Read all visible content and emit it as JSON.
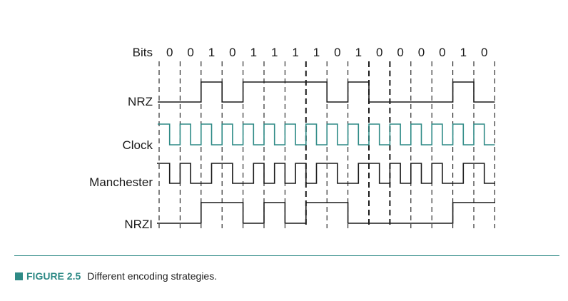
{
  "figure": {
    "bits_label": "Bits",
    "bits": [
      0,
      0,
      1,
      0,
      1,
      1,
      1,
      1,
      0,
      1,
      0,
      0,
      0,
      0,
      1,
      0
    ],
    "signals": [
      {
        "key": "nrz",
        "label": "NRZ"
      },
      {
        "key": "clock",
        "label": "Clock"
      },
      {
        "key": "manchester",
        "label": "Manchester"
      },
      {
        "key": "nrzi",
        "label": "NRZI"
      }
    ],
    "colors": {
      "signal": "#1a1a1a",
      "clock": "#2e8a86",
      "accent": "#2e8a86",
      "gridline": "#1a1a1a"
    }
  },
  "caption": {
    "label": "FIGURE 2.5",
    "text": "Different encoding strategies.",
    "square_color": "#2e8a86",
    "label_color": "#2e8a86"
  }
}
